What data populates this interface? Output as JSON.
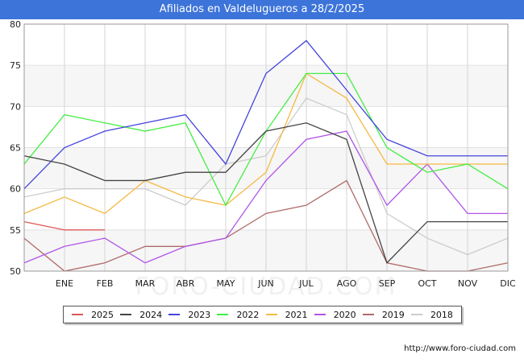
{
  "title": "Afiliados en Valdelugueros a 28/2/2025",
  "watermark": "FORO-CIUDAD.COM",
  "source": "http://www.foro-ciudad.com",
  "chart_data": {
    "type": "line",
    "title": "Afiliados en Valdelugueros a 28/2/2025",
    "xlabel": "",
    "ylabel": "",
    "categories": [
      "",
      "ENE",
      "FEB",
      "MAR",
      "ABR",
      "MAY",
      "JUN",
      "JUL",
      "AGO",
      "SEP",
      "OCT",
      "NOV",
      "DIC"
    ],
    "ylim": [
      50,
      80
    ],
    "yticks": [
      50,
      55,
      60,
      65,
      70,
      75,
      80
    ],
    "grid": true,
    "legend_position": "bottom",
    "series": [
      {
        "name": "2025",
        "color": "#e05555",
        "values": [
          56,
          55,
          55,
          null,
          null,
          null,
          null,
          null,
          null,
          null,
          null,
          null,
          null
        ]
      },
      {
        "name": "2024",
        "color": "#444444",
        "values": [
          64,
          63,
          61,
          61,
          62,
          62,
          67,
          68,
          66,
          51,
          56,
          56,
          56
        ]
      },
      {
        "name": "2023",
        "color": "#4444dd",
        "values": [
          60,
          65,
          67,
          68,
          69,
          63,
          74,
          78,
          72,
          66,
          64,
          64,
          64
        ]
      },
      {
        "name": "2022",
        "color": "#44ee44",
        "values": [
          63,
          69,
          68,
          67,
          68,
          58,
          67,
          74,
          74,
          65,
          62,
          63,
          60
        ]
      },
      {
        "name": "2021",
        "color": "#f5b942",
        "values": [
          57,
          59,
          57,
          61,
          59,
          58,
          62,
          74,
          71,
          63,
          63,
          63,
          63
        ]
      },
      {
        "name": "2020",
        "color": "#b055e8",
        "values": [
          51,
          53,
          54,
          51,
          53,
          54,
          61,
          66,
          67,
          58,
          63,
          57,
          57
        ]
      },
      {
        "name": "2019",
        "color": "#b06a6a",
        "values": [
          54,
          50,
          51,
          53,
          53,
          54,
          57,
          58,
          61,
          51,
          50,
          50,
          51
        ]
      },
      {
        "name": "2018",
        "color": "#cccccc",
        "values": [
          59,
          60,
          60,
          60,
          58,
          63,
          64,
          71,
          69,
          57,
          54,
          52,
          54
        ]
      }
    ]
  }
}
